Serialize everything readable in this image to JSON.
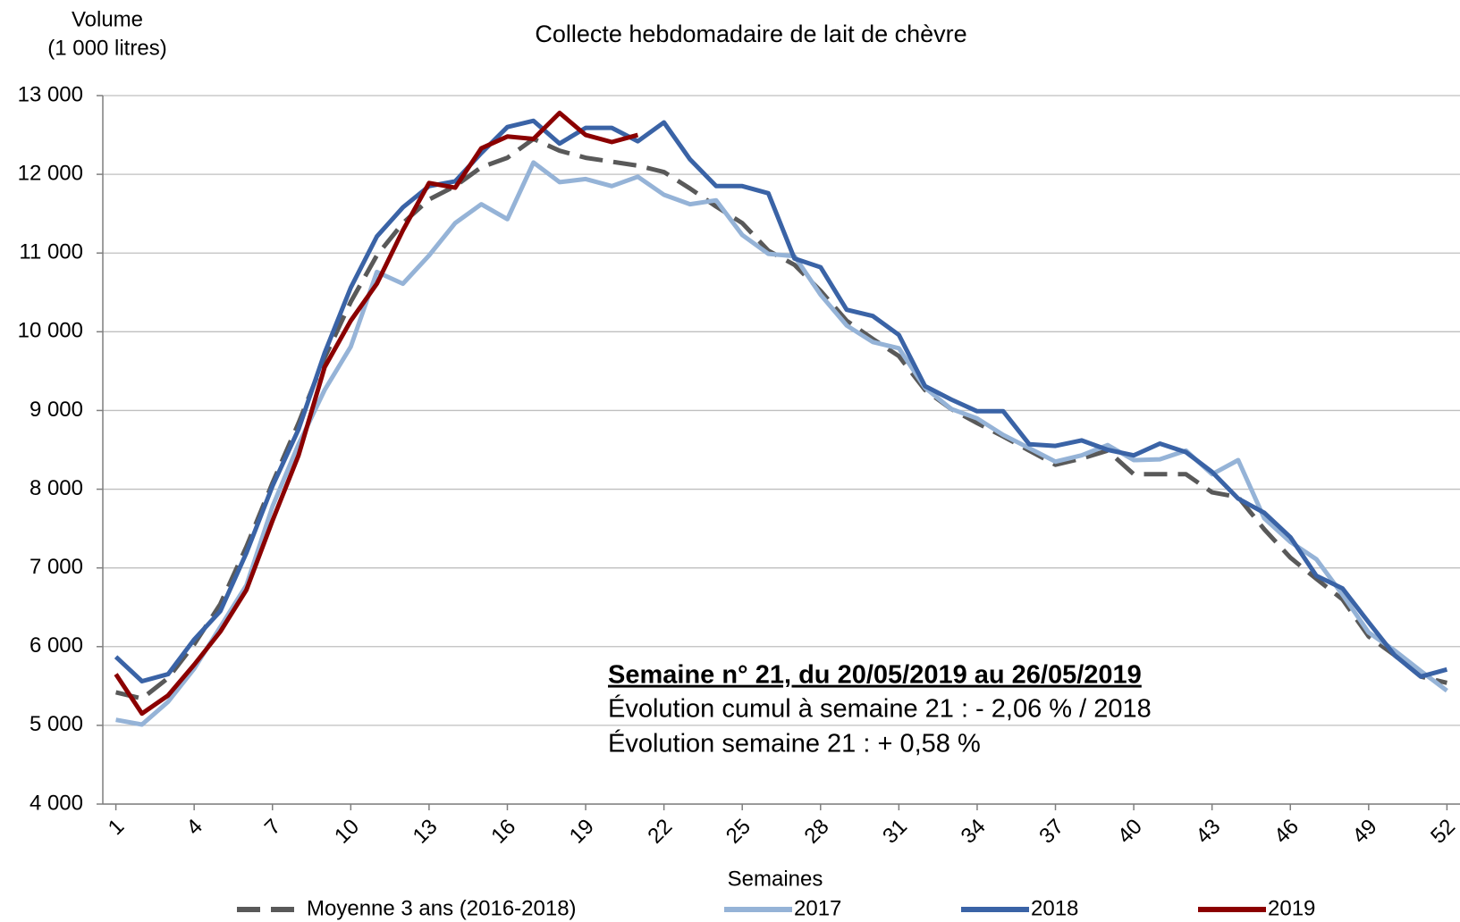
{
  "chart_data": {
    "type": "line",
    "title": "Collecte hebdomadaire de lait de chèvre",
    "y_label": [
      "Volume",
      "(1 000 litres)"
    ],
    "x_label": "Semaines",
    "annotations": [
      "Semaine n°  21, du 20/05/2019 au 26/05/2019",
      "Évolution cumul à semaine 21 : - 2,06 % / 2018",
      "Évolution semaine 21 : + 0,58 %"
    ],
    "x": [
      1,
      2,
      3,
      4,
      5,
      6,
      7,
      8,
      9,
      10,
      11,
      12,
      13,
      14,
      15,
      16,
      17,
      18,
      19,
      20,
      21,
      22,
      23,
      24,
      25,
      26,
      27,
      28,
      29,
      30,
      31,
      32,
      33,
      34,
      35,
      36,
      37,
      38,
      39,
      40,
      41,
      42,
      43,
      44,
      45,
      46,
      47,
      48,
      49,
      50,
      51,
      52
    ],
    "xlim": [
      0.5,
      52.5
    ],
    "xticks": [
      1,
      4,
      7,
      10,
      13,
      16,
      19,
      22,
      25,
      28,
      31,
      34,
      37,
      40,
      43,
      46,
      49,
      52
    ],
    "ylim": [
      4000,
      13000
    ],
    "yticks": [
      {
        "value": 4000,
        "label": "4 000"
      },
      {
        "value": 5000,
        "label": "5 000"
      },
      {
        "value": 6000,
        "label": "6 000"
      },
      {
        "value": 7000,
        "label": "7 000"
      },
      {
        "value": 8000,
        "label": "8 000"
      },
      {
        "value": 9000,
        "label": "9 000"
      },
      {
        "value": 10000,
        "label": "10 000"
      },
      {
        "value": 11000,
        "label": "11 000"
      },
      {
        "value": 12000,
        "label": "12 000"
      },
      {
        "value": 13000,
        "label": "13 000"
      }
    ],
    "grid": true,
    "legend": "bottom",
    "series": [
      {
        "name": "Moyenne 3 ans (2016-2018)",
        "color": "#595959",
        "dashed": true,
        "values": [
          5420,
          5340,
          5600,
          6030,
          6540,
          7270,
          8080,
          8840,
          9670,
          10380,
          10970,
          11380,
          11680,
          11850,
          12090,
          12210,
          12450,
          12300,
          12210,
          12160,
          12110,
          12030,
          11820,
          11590,
          11380,
          11030,
          10850,
          10520,
          10140,
          9910,
          9690,
          9260,
          9020,
          8840,
          8670,
          8490,
          8310,
          8390,
          8490,
          8190,
          8190,
          8190,
          7960,
          7900,
          7490,
          7130,
          6860,
          6600,
          6130,
          5890,
          5620,
          5540
        ]
      },
      {
        "name": "2017",
        "color": "#95b3d7",
        "values": [
          5070,
          5010,
          5300,
          5720,
          6250,
          6780,
          7780,
          8570,
          9260,
          9810,
          10760,
          10610,
          10970,
          11380,
          11620,
          11430,
          12150,
          11900,
          11940,
          11850,
          11970,
          11740,
          11620,
          11670,
          11230,
          10990,
          10960,
          10470,
          10080,
          9870,
          9790,
          9290,
          9020,
          8900,
          8690,
          8520,
          8350,
          8430,
          8560,
          8370,
          8380,
          8490,
          8190,
          8370,
          7630,
          7330,
          7110,
          6660,
          6180,
          5950,
          5690,
          5440
        ]
      },
      {
        "name": "2018",
        "color": "#3a63a6",
        "values": [
          5870,
          5560,
          5650,
          6090,
          6450,
          7190,
          8040,
          8760,
          9730,
          10560,
          11210,
          11580,
          11850,
          11910,
          12270,
          12600,
          12680,
          12390,
          12590,
          12590,
          12420,
          12660,
          12190,
          11850,
          11850,
          11760,
          10930,
          10820,
          10280,
          10200,
          9960,
          9310,
          9140,
          8990,
          8990,
          8570,
          8550,
          8620,
          8500,
          8430,
          8580,
          8470,
          8220,
          7880,
          7700,
          7390,
          6900,
          6740,
          6310,
          5890,
          5620,
          5710
        ]
      },
      {
        "name": "2019",
        "color": "#8b0000",
        "values": [
          5650,
          5150,
          5380,
          5770,
          6190,
          6720,
          7600,
          8430,
          9550,
          10140,
          10610,
          11290,
          11890,
          11830,
          12330,
          12480,
          12450,
          12780,
          12500,
          12410,
          12500,
          null,
          null,
          null,
          null,
          null,
          null,
          null,
          null,
          null,
          null,
          null,
          null,
          null,
          null,
          null,
          null,
          null,
          null,
          null,
          null,
          null,
          null,
          null,
          null,
          null,
          null,
          null,
          null,
          null,
          null,
          null
        ]
      }
    ]
  }
}
